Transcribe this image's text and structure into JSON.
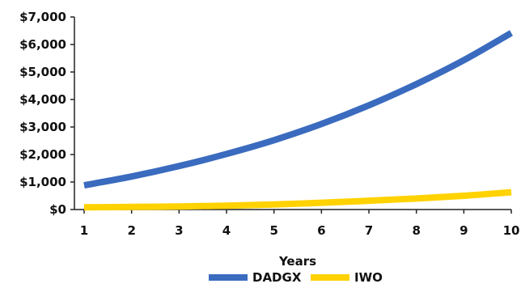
{
  "chart_data": {
    "type": "line",
    "title": "",
    "xlabel": "Years",
    "ylabel": "",
    "x": [
      1,
      2,
      3,
      4,
      5,
      6,
      7,
      8,
      9,
      10
    ],
    "xlim": [
      1,
      10
    ],
    "ylim": [
      0,
      7000
    ],
    "y_ticks": [
      {
        "value": 0,
        "label": "$0"
      },
      {
        "value": 1000,
        "label": "$1,000"
      },
      {
        "value": 2000,
        "label": "$2,000"
      },
      {
        "value": 3000,
        "label": "$3,000"
      },
      {
        "value": 4000,
        "label": "$4,000"
      },
      {
        "value": 5000,
        "label": "$5,000"
      },
      {
        "value": 6000,
        "label": "$6,000"
      },
      {
        "value": 7000,
        "label": "$7,000"
      }
    ],
    "x_tick_labels": [
      "1",
      "2",
      "3",
      "4",
      "5",
      "6",
      "7",
      "8",
      "9",
      "10"
    ],
    "grid": false,
    "legend_position": "bottom",
    "series": [
      {
        "name": "DADGX",
        "color": "#3a6bbf",
        "values": [
          880,
          1200,
          1580,
          2020,
          2520,
          3110,
          3790,
          4560,
          5430,
          6420
        ]
      },
      {
        "name": "IWO",
        "color": "#ffd200",
        "values": [
          80,
          95,
          110,
          140,
          185,
          245,
          320,
          400,
          500,
          630
        ]
      }
    ]
  }
}
